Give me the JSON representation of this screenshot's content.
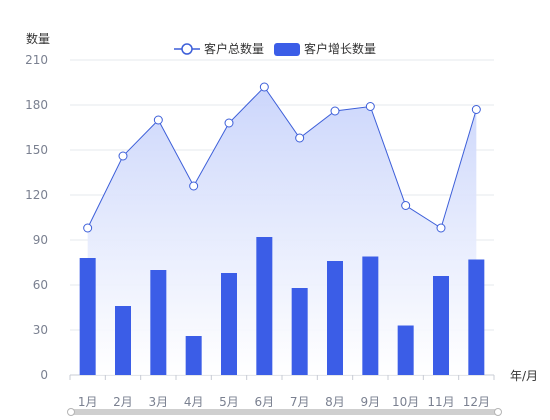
{
  "chart_data": {
    "type": "bar",
    "categories": [
      "1月",
      "2月",
      "3月",
      "4月",
      "5月",
      "6月",
      "7月",
      "8月",
      "9月",
      "10月",
      "11月",
      "12月"
    ],
    "series": [
      {
        "name": "客户总数量",
        "type": "line",
        "values": [
          98,
          146,
          170,
          126,
          168,
          192,
          158,
          176,
          179,
          113,
          98,
          177
        ],
        "color": "#3d5fd9",
        "area_color": "#d6defb"
      },
      {
        "name": "客户增长数量",
        "type": "bar",
        "values": [
          78,
          46,
          70,
          26,
          68,
          92,
          58,
          76,
          79,
          33,
          66,
          77
        ],
        "color": "#3b5de7"
      }
    ],
    "xlabel": "年/月",
    "ylabel": "数量",
    "ylim": [
      0,
      210
    ],
    "yticks": [
      0,
      30,
      60,
      90,
      120,
      150,
      180,
      210
    ],
    "grid": true,
    "legend_position": "top-center",
    "has_zoom_slider": true
  }
}
